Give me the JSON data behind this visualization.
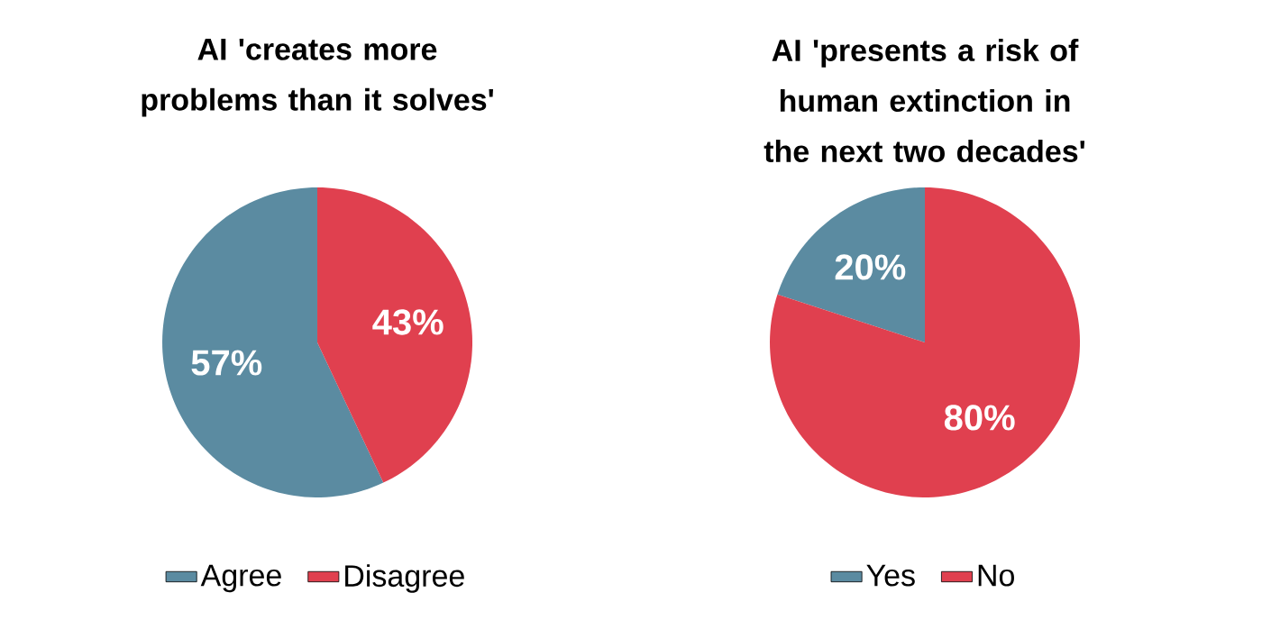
{
  "chart_data": [
    {
      "type": "pie",
      "title": "AI 'creates more problems than it solves'",
      "categories": [
        "Agree",
        "Disagree"
      ],
      "values": [
        57,
        43
      ],
      "colors": [
        "#5b8ba1",
        "#e0404f"
      ],
      "value_labels": [
        "57%",
        "43%"
      ],
      "legend": "bottom"
    },
    {
      "type": "pie",
      "title": "AI 'presents a risk of human extinction in the next two decades'",
      "categories": [
        "Yes",
        "No"
      ],
      "values": [
        20,
        80
      ],
      "colors": [
        "#5b8ba1",
        "#e0404f"
      ],
      "value_labels": [
        "20%",
        "80%"
      ],
      "legend": "bottom"
    }
  ]
}
